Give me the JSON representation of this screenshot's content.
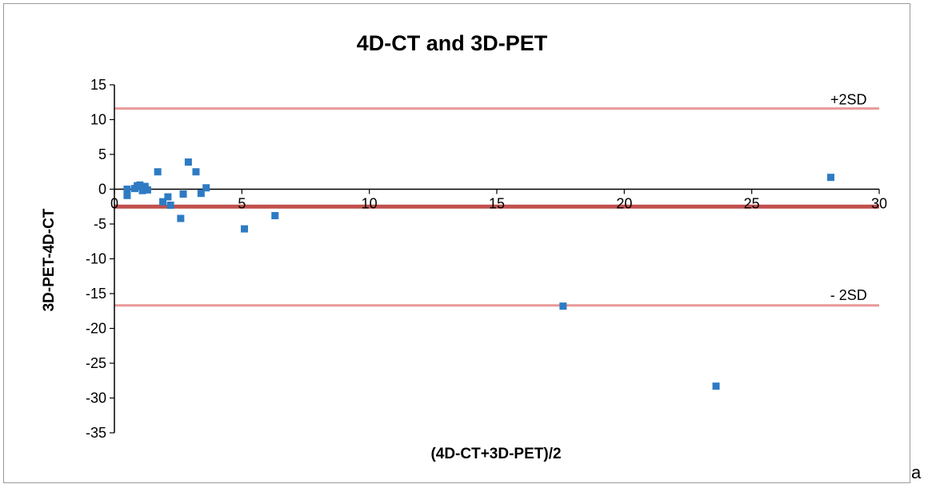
{
  "panel_label": "a",
  "chart_data": {
    "type": "scatter",
    "title": "4D-CT and 3D-PET",
    "xlabel": "(4D-CT+3D-PET)/2",
    "ylabel": "3D-PET-4D-CT",
    "xlim": [
      0,
      30
    ],
    "ylim": [
      -35,
      15
    ],
    "xticks": [
      0,
      5,
      10,
      15,
      20,
      25,
      30
    ],
    "yticks": [
      15,
      10,
      5,
      0,
      -5,
      -10,
      -15,
      -20,
      -25,
      -30,
      -35
    ],
    "x_axis_crosses_at_y": 0,
    "grid": false,
    "marker_color": "#2e7bc4",
    "points": [
      {
        "x": 0.5,
        "y": 0.0
      },
      {
        "x": 0.5,
        "y": -0.9
      },
      {
        "x": 0.8,
        "y": 0.1
      },
      {
        "x": 0.9,
        "y": 0.5
      },
      {
        "x": 1.0,
        "y": 0.6
      },
      {
        "x": 1.1,
        "y": -0.2
      },
      {
        "x": 1.2,
        "y": 0.3
      },
      {
        "x": 1.2,
        "y": 0.4
      },
      {
        "x": 1.3,
        "y": -0.1
      },
      {
        "x": 1.7,
        "y": 2.5
      },
      {
        "x": 1.9,
        "y": -1.8
      },
      {
        "x": 2.1,
        "y": -1.1
      },
      {
        "x": 2.2,
        "y": -2.3
      },
      {
        "x": 2.6,
        "y": -4.2
      },
      {
        "x": 2.7,
        "y": -0.7
      },
      {
        "x": 2.9,
        "y": 3.9
      },
      {
        "x": 3.2,
        "y": 2.5
      },
      {
        "x": 3.4,
        "y": -0.6
      },
      {
        "x": 3.6,
        "y": 0.2
      },
      {
        "x": 5.1,
        "y": -5.7
      },
      {
        "x": 6.3,
        "y": -3.8
      },
      {
        "x": 17.6,
        "y": -16.8
      },
      {
        "x": 23.6,
        "y": -28.3
      },
      {
        "x": 28.1,
        "y": 1.7
      }
    ],
    "reference_lines": [
      {
        "name": "+2SD",
        "y": 11.6,
        "color": "#e89a9a"
      },
      {
        "name": "mean",
        "y": -2.5,
        "color": "#c0504d"
      },
      {
        "name": "- 2SD",
        "y": -16.7,
        "color": "#e89a9a"
      }
    ],
    "annotations": [
      {
        "text": "+2SD",
        "x": 28.8,
        "y": 12.2
      },
      {
        "text": "- 2SD",
        "x": 28.8,
        "y": -15.9
      }
    ]
  }
}
